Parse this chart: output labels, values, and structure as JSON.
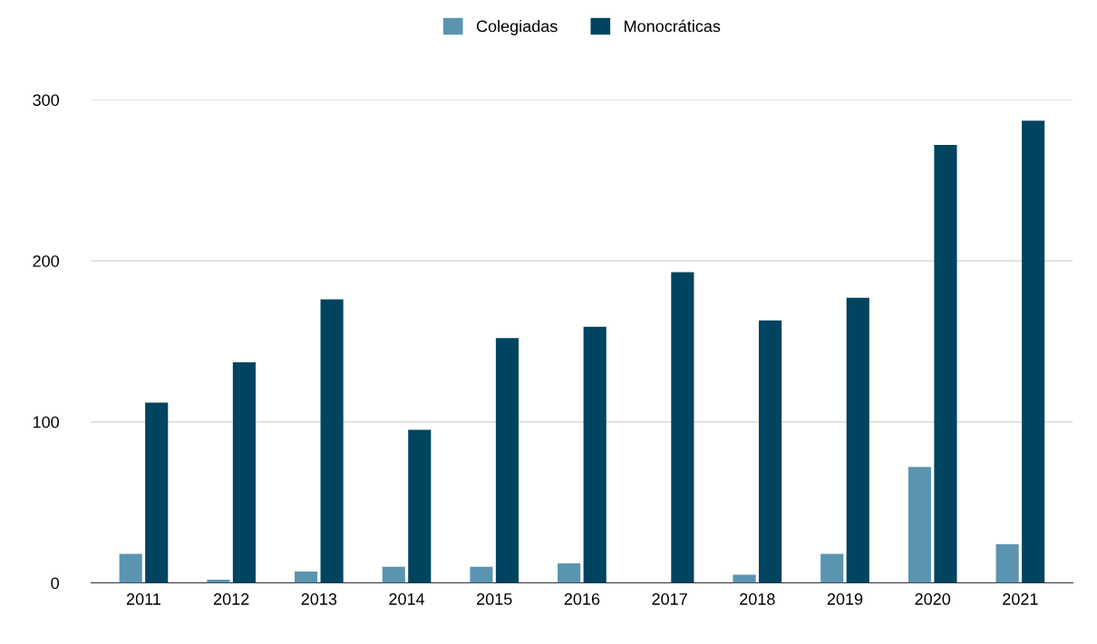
{
  "chart_data": {
    "type": "bar",
    "categories": [
      "2011",
      "2012",
      "2013",
      "2014",
      "2015",
      "2016",
      "2017",
      "2018",
      "2019",
      "2020",
      "2021"
    ],
    "series": [
      {
        "name": "Colegiadas",
        "color": "#5b94b1",
        "values": [
          18,
          2,
          7,
          10,
          10,
          12,
          0,
          5,
          18,
          72,
          24
        ]
      },
      {
        "name": "Monocráticas",
        "color": "#00445f",
        "values": [
          112,
          137,
          176,
          95,
          152,
          159,
          193,
          163,
          177,
          272,
          287
        ]
      }
    ],
    "ylim": [
      0,
      300
    ],
    "yticks": [
      0,
      100,
      200,
      300
    ],
    "grid": "y",
    "legend": "top"
  }
}
